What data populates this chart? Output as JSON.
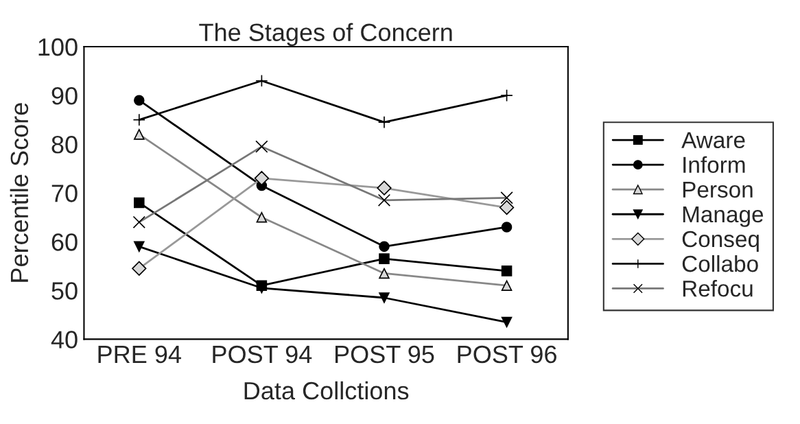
{
  "chart_data": {
    "type": "line",
    "title": "The Stages of Concern",
    "xlabel": "Data Collctions",
    "ylabel": "Percentile Score",
    "categories": [
      "PRE 94",
      "POST 94",
      "POST 95",
      "POST 96"
    ],
    "ylim": [
      40,
      100
    ],
    "yticks": [
      40,
      50,
      60,
      70,
      80,
      90,
      100
    ],
    "grid": false,
    "legend": "right",
    "series": [
      {
        "name": "Aware",
        "color": "#000000",
        "marker": "square",
        "values": [
          68,
          51,
          56.5,
          54
        ]
      },
      {
        "name": "Inform",
        "color": "#000000",
        "marker": "circle",
        "values": [
          89,
          71.5,
          59,
          63
        ]
      },
      {
        "name": "Person",
        "color": "#888888",
        "marker": "triangle",
        "values": [
          82,
          65,
          53.5,
          51
        ]
      },
      {
        "name": "Manage",
        "color": "#000000",
        "marker": "triangle_down",
        "values": [
          59,
          50.5,
          48.5,
          43.5
        ]
      },
      {
        "name": "Conseq",
        "color": "#999999",
        "marker": "diamond",
        "values": [
          54.5,
          73,
          71,
          67
        ]
      },
      {
        "name": "Collabo",
        "color": "#000000",
        "marker": "plus",
        "values": [
          85,
          93,
          84.5,
          90
        ]
      },
      {
        "name": "Refocu",
        "color": "#777777",
        "marker": "cross",
        "values": [
          64,
          79.5,
          68.5,
          69
        ]
      }
    ]
  }
}
